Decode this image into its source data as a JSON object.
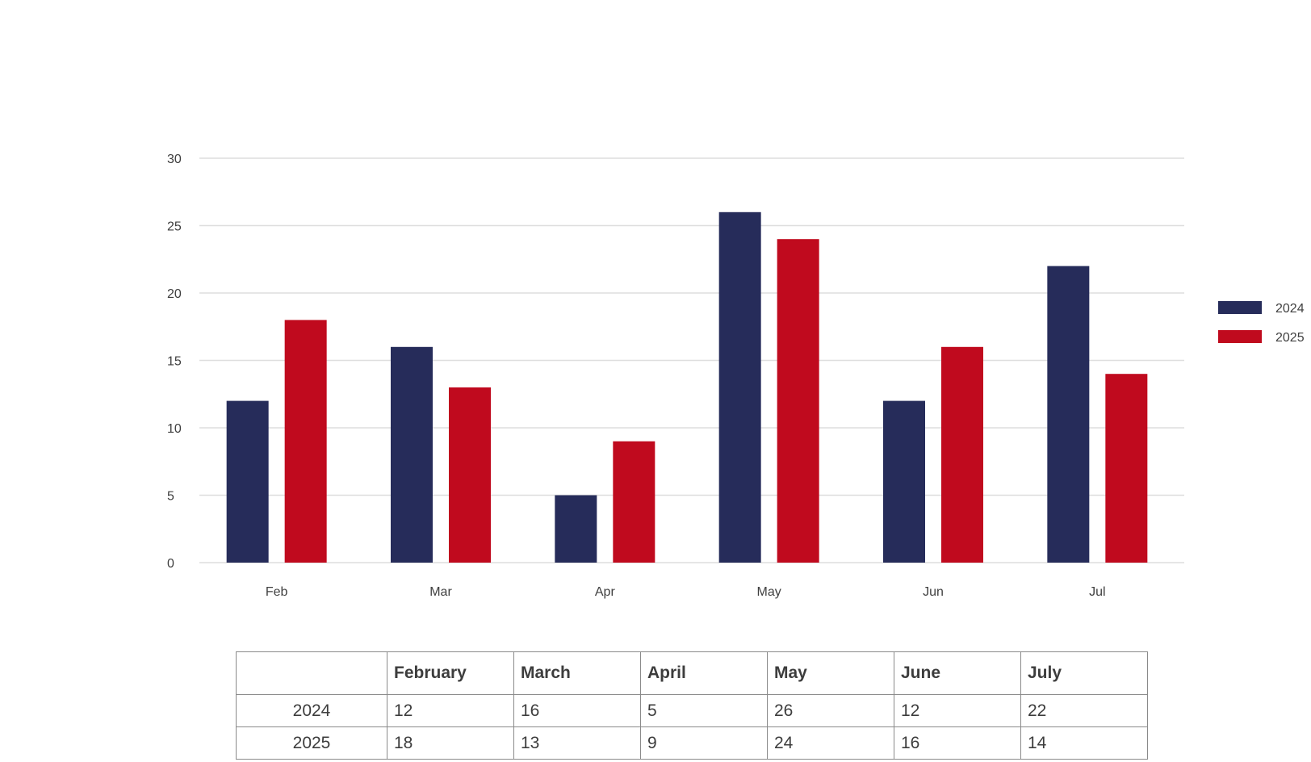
{
  "chart_data": {
    "type": "bar",
    "title": "",
    "xlabel": "",
    "ylabel": "",
    "ylim": [
      0,
      30
    ],
    "yticks": [
      0,
      5,
      10,
      15,
      20,
      25,
      30
    ],
    "grid": true,
    "legend_position": "right",
    "categories": [
      "Feb",
      "Mar",
      "Apr",
      "May",
      "Jun",
      "Jul"
    ],
    "series": [
      {
        "name": "2024",
        "color": "#262c5a",
        "values": [
          12,
          16,
          5,
          26,
          12,
          22
        ]
      },
      {
        "name": "2025",
        "color": "#c00a1e",
        "values": [
          18,
          13,
          9,
          24,
          16,
          14
        ]
      }
    ]
  },
  "table": {
    "headers": [
      "",
      "February",
      "March",
      "April",
      "May",
      "June",
      "July"
    ],
    "rows": [
      [
        "2024",
        "12",
        "16",
        "5",
        "26",
        "12",
        "22"
      ],
      [
        "2025",
        "18",
        "13",
        "9",
        "24",
        "16",
        "14"
      ]
    ]
  }
}
